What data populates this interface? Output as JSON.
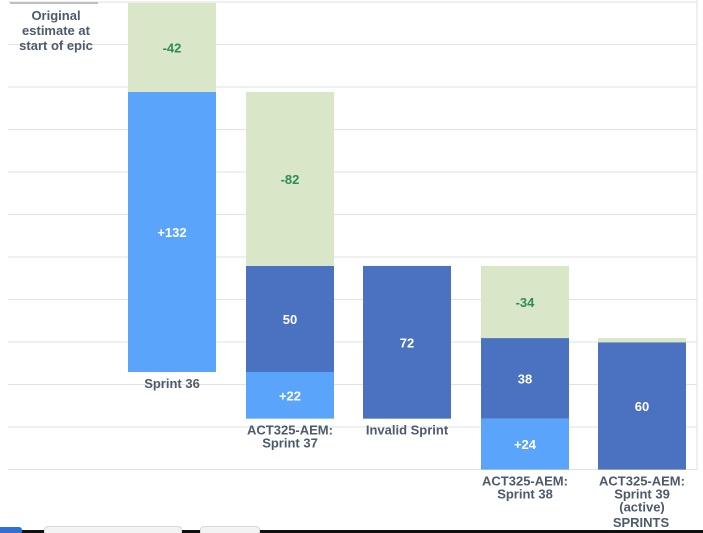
{
  "header": {
    "original_estimate_lines": [
      "Original",
      "estimate at",
      "start of epic"
    ]
  },
  "colors": {
    "removed": "#d9e7c8",
    "removed_text": "#2e8b57",
    "added": "#5aa5fb",
    "remaining": "#4a72c0",
    "grid": "#e2e2e2",
    "category_text": "#4d5a6b"
  },
  "chart_data": {
    "type": "bar",
    "y_scale": "story points (stacked waterfall)",
    "grid": true,
    "categories": [
      [
        "Sprint 36"
      ],
      [
        "ACT325-AEM:",
        "Sprint 37"
      ],
      [
        "Invalid Sprint"
      ],
      [
        "ACT325-AEM:",
        "Sprint 38"
      ],
      [
        "ACT325-AEM:",
        "Sprint 39",
        "(active)"
      ]
    ],
    "x_axis_title": "SPRINTS",
    "bars": [
      {
        "category_index": 0,
        "segments": [
          {
            "kind": "added",
            "label": "+132",
            "bottom": 0,
            "top": 132
          },
          {
            "kind": "removed",
            "label": "-42",
            "bottom": 132,
            "top": 174
          }
        ]
      },
      {
        "category_index": 1,
        "segments": [
          {
            "kind": "added",
            "label": "+22",
            "bottom": -22,
            "top": 0
          },
          {
            "kind": "remaining",
            "label": "50",
            "bottom": 0,
            "top": 50
          },
          {
            "kind": "removed",
            "label": "-82",
            "bottom": 50,
            "top": 132
          }
        ]
      },
      {
        "category_index": 2,
        "segments": [
          {
            "kind": "remaining",
            "label": "72",
            "bottom": -22,
            "top": 50
          }
        ]
      },
      {
        "category_index": 3,
        "segments": [
          {
            "kind": "added",
            "label": "+24",
            "bottom": -46,
            "top": -22
          },
          {
            "kind": "remaining",
            "label": "38",
            "bottom": -22,
            "top": 16
          },
          {
            "kind": "removed",
            "label": "-34",
            "bottom": 16,
            "top": 50
          }
        ]
      },
      {
        "category_index": 4,
        "segments": [
          {
            "kind": "remaining",
            "label": "60",
            "bottom": -46,
            "top": 14
          },
          {
            "kind": "removed",
            "label": "",
            "bottom": 14,
            "top": 16
          }
        ]
      }
    ]
  }
}
